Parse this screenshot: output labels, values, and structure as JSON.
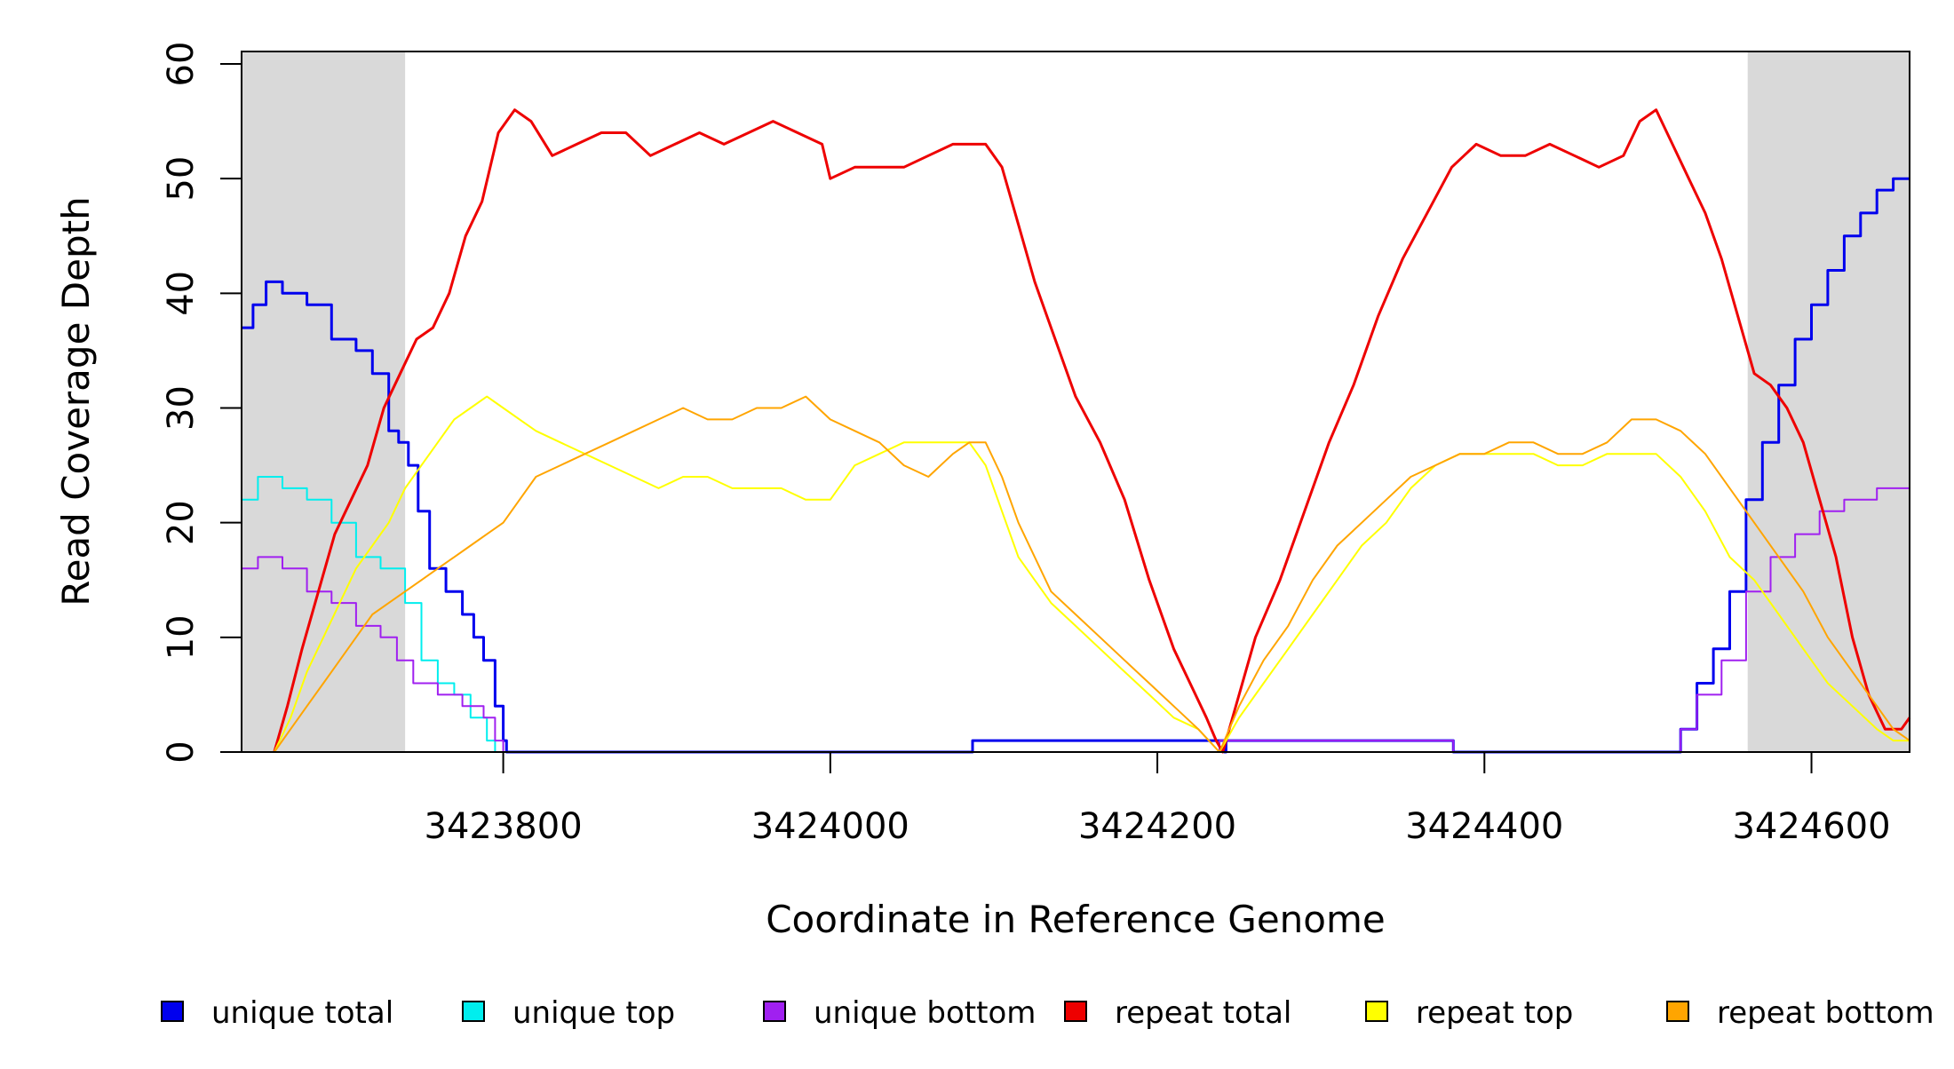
{
  "chart_data": {
    "type": "line",
    "xlabel": "Coordinate in Reference Genome",
    "ylabel": "Read Coverage Depth",
    "xlim": [
      3423640,
      3424660
    ],
    "ylim": [
      0,
      60
    ],
    "x_ticks": [
      3423800,
      3424000,
      3424200,
      3424400,
      3424600
    ],
    "x_tick_labels": [
      "3423800",
      "3424000",
      "3424200",
      "3424400",
      "3424600"
    ],
    "y_ticks": [
      0,
      10,
      20,
      30,
      40,
      50,
      60
    ],
    "y_tick_labels": [
      "0",
      "10",
      "20",
      "30",
      "40",
      "50",
      "60"
    ],
    "shaded_regions": [
      {
        "x_range": [
          3423640,
          3423740
        ],
        "color": "#d9d9d9"
      },
      {
        "x_range": [
          3424561,
          3424660
        ],
        "color": "#d9d9d9"
      }
    ],
    "series": [
      {
        "name": "unique total",
        "color": "#0000ee",
        "stroke_width": 3,
        "x": [
          3423640,
          3423647,
          3423655,
          3423665,
          3423680,
          3423695,
          3423710,
          3423720,
          3423730,
          3423736,
          3423742,
          3423748,
          3423755,
          3423765,
          3423775,
          3423782,
          3423788,
          3423795,
          3423800,
          3423802,
          3424086,
          3424087,
          3424235,
          3424241,
          3424242,
          3424380,
          3424381,
          3424516,
          3424520,
          3424530,
          3424540,
          3424550,
          3424560,
          3424570,
          3424580,
          3424590,
          3424600,
          3424610,
          3424620,
          3424630,
          3424640,
          3424650,
          3424660
        ],
        "y": [
          37,
          39,
          41,
          40,
          39,
          36,
          35,
          33,
          28,
          27,
          25,
          21,
          16,
          14,
          12,
          10,
          8,
          4,
          1,
          0,
          0,
          1,
          1,
          0,
          1,
          1,
          0,
          0,
          2,
          6,
          9,
          14,
          22,
          27,
          32,
          36,
          39,
          42,
          45,
          47,
          49,
          50,
          50
        ],
        "step": true
      },
      {
        "name": "unique top",
        "color": "#00eeee",
        "stroke_width": 2,
        "x": [
          3423640,
          3423650,
          3423665,
          3423680,
          3423695,
          3423710,
          3423725,
          3423740,
          3423750,
          3423760,
          3423770,
          3423780,
          3423790,
          3423795,
          3423800,
          3424660
        ],
        "y": [
          22,
          24,
          23,
          22,
          20,
          17,
          16,
          13,
          8,
          6,
          5,
          3,
          1,
          0,
          0,
          0
        ],
        "step": true
      },
      {
        "name": "unique bottom",
        "color": "#a020f0",
        "stroke_width": 2,
        "x": [
          3423640,
          3423650,
          3423665,
          3423680,
          3423695,
          3423710,
          3423725,
          3423735,
          3423745,
          3423760,
          3423775,
          3423788,
          3423795,
          3423800,
          3424237,
          3424238,
          3424380,
          3424381,
          3424516,
          3424520,
          3424530,
          3424545,
          3424560,
          3424575,
          3424590,
          3424605,
          3424620,
          3424640,
          3424660
        ],
        "y": [
          16,
          17,
          16,
          14,
          13,
          11,
          10,
          8,
          6,
          5,
          4,
          3,
          1,
          0,
          0,
          1,
          1,
          0,
          0,
          2,
          5,
          8,
          14,
          17,
          19,
          21,
          22,
          23,
          23
        ],
        "step": true
      },
      {
        "name": "repeat total",
        "color": "#ee0000",
        "stroke_width": 3,
        "x": [
          3423660,
          3423668,
          3423677,
          3423687,
          3423697,
          3423707,
          3423717,
          3423727,
          3423737,
          3423747,
          3423757,
          3423767,
          3423777,
          3423787,
          3423797,
          3423807,
          3423817,
          3423830,
          3423845,
          3423860,
          3423875,
          3423890,
          3423905,
          3423920,
          3423935,
          3423950,
          3423965,
          3423980,
          3423995,
          3424000,
          3424015,
          3424030,
          3424045,
          3424060,
          3424075,
          3424088,
          3424095,
          3424105,
          3424115,
          3424125,
          3424135,
          3424150,
          3424165,
          3424180,
          3424195,
          3424210,
          3424220,
          3424230,
          3424236,
          3424240,
          3424250,
          3424260,
          3424275,
          3424290,
          3424305,
          3424320,
          3424335,
          3424350,
          3424365,
          3424380,
          3424395,
          3424410,
          3424425,
          3424440,
          3424455,
          3424470,
          3424485,
          3424495,
          3424505,
          3424515,
          3424525,
          3424535,
          3424545,
          3424555,
          3424565,
          3424575,
          3424585,
          3424595,
          3424605,
          3424615,
          3424625,
          3424635,
          3424645,
          3424655,
          3424660
        ],
        "y": [
          0,
          4,
          9,
          14,
          19,
          22,
          25,
          30,
          33,
          36,
          37,
          40,
          45,
          48,
          54,
          56,
          55,
          52,
          53,
          54,
          54,
          52,
          53,
          54,
          53,
          54,
          55,
          54,
          53,
          50,
          51,
          51,
          51,
          52,
          53,
          53,
          53,
          51,
          46,
          41,
          37,
          31,
          27,
          22,
          15,
          9,
          6,
          3,
          1,
          0,
          5,
          10,
          15,
          21,
          27,
          32,
          38,
          43,
          47,
          51,
          53,
          52,
          52,
          53,
          52,
          51,
          52,
          55,
          56,
          53,
          50,
          47,
          43,
          38,
          33,
          32,
          30,
          27,
          22,
          17,
          10,
          5,
          2,
          2,
          3
        ],
        "step": false
      },
      {
        "name": "repeat top",
        "color": "#ffff00",
        "stroke_width": 2,
        "x": [
          3423660,
          3423670,
          3423680,
          3423690,
          3423700,
          3423710,
          3423720,
          3423730,
          3423740,
          3423750,
          3423760,
          3423770,
          3423780,
          3423790,
          3423800,
          3423810,
          3423820,
          3423835,
          3423850,
          3423865,
          3423880,
          3423895,
          3423910,
          3423925,
          3423940,
          3423955,
          3423970,
          3423985,
          3424000,
          3424015,
          3424030,
          3424045,
          3424060,
          3424075,
          3424085,
          3424095,
          3424105,
          3424115,
          3424125,
          3424135,
          3424150,
          3424165,
          3424180,
          3424195,
          3424210,
          3424225,
          3424238,
          3424250,
          3424265,
          3424280,
          3424295,
          3424310,
          3424325,
          3424340,
          3424355,
          3424370,
          3424385,
          3424400,
          3424415,
          3424430,
          3424445,
          3424460,
          3424475,
          3424490,
          3424505,
          3424520,
          3424535,
          3424550,
          3424565,
          3424580,
          3424595,
          3424610,
          3424625,
          3424640,
          3424650,
          3424660
        ],
        "y": [
          0,
          3,
          7,
          10,
          13,
          16,
          18,
          20,
          23,
          25,
          27,
          29,
          30,
          31,
          30,
          29,
          28,
          27,
          26,
          25,
          24,
          23,
          24,
          24,
          23,
          23,
          23,
          22,
          22,
          25,
          26,
          27,
          27,
          27,
          27,
          25,
          21,
          17,
          15,
          13,
          11,
          9,
          7,
          5,
          3,
          2,
          0,
          3,
          6,
          9,
          12,
          15,
          18,
          20,
          23,
          25,
          26,
          26,
          26,
          26,
          25,
          25,
          26,
          26,
          26,
          24,
          21,
          17,
          15,
          12,
          9,
          6,
          4,
          2,
          1,
          1
        ],
        "step": false
      },
      {
        "name": "repeat bottom",
        "color": "#ffa500",
        "stroke_width": 2,
        "x": [
          3423660,
          3423670,
          3423680,
          3423690,
          3423700,
          3423710,
          3423720,
          3423730,
          3423740,
          3423750,
          3423760,
          3423770,
          3423780,
          3423790,
          3423800,
          3423810,
          3423820,
          3423835,
          3423850,
          3423865,
          3423880,
          3423895,
          3423910,
          3423925,
          3423940,
          3423955,
          3423970,
          3423985,
          3424000,
          3424015,
          3424030,
          3424045,
          3424060,
          3424075,
          3424085,
          3424095,
          3424105,
          3424115,
          3424125,
          3424135,
          3424150,
          3424165,
          3424180,
          3424195,
          3424210,
          3424225,
          3424238,
          3424250,
          3424265,
          3424280,
          3424295,
          3424310,
          3424325,
          3424340,
          3424355,
          3424370,
          3424385,
          3424400,
          3424415,
          3424430,
          3424445,
          3424460,
          3424475,
          3424490,
          3424505,
          3424520,
          3424535,
          3424550,
          3424565,
          3424580,
          3424595,
          3424610,
          3424625,
          3424640,
          3424650,
          3424660
        ],
        "y": [
          0,
          2,
          4,
          6,
          8,
          10,
          12,
          13,
          14,
          15,
          16,
          17,
          18,
          19,
          20,
          22,
          24,
          25,
          26,
          27,
          28,
          29,
          30,
          29,
          29,
          30,
          30,
          31,
          29,
          28,
          27,
          25,
          24,
          26,
          27,
          27,
          24,
          20,
          17,
          14,
          12,
          10,
          8,
          6,
          4,
          2,
          0,
          4,
          8,
          11,
          15,
          18,
          20,
          22,
          24,
          25,
          26,
          26,
          27,
          27,
          26,
          26,
          27,
          29,
          29,
          28,
          26,
          23,
          20,
          17,
          14,
          10,
          7,
          4,
          2,
          1
        ],
        "step": false
      }
    ],
    "legend": {
      "placement": "bottom",
      "entries": [
        {
          "label": "unique total",
          "color": "#0000ee"
        },
        {
          "label": "unique top",
          "color": "#00eeee"
        },
        {
          "label": "unique bottom",
          "color": "#a020f0"
        },
        {
          "label": "repeat total",
          "color": "#ee0000"
        },
        {
          "label": "repeat top",
          "color": "#ffff00"
        },
        {
          "label": "repeat bottom",
          "color": "#ffa500"
        }
      ]
    }
  }
}
